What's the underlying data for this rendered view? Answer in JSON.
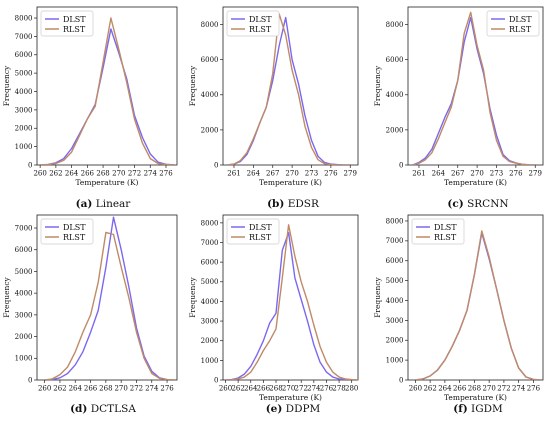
{
  "figure": {
    "colors": {
      "DLST": "#7b68ee",
      "RLST": "#bf8a66",
      "axis": "#222222"
    }
  },
  "chart_data": [
    {
      "type": "line",
      "caption_letter": "(a)",
      "caption_text": "Linear",
      "xlabel": "Temperature (K)",
      "ylabel": "Frequency",
      "xlim": [
        259.6,
        277.4
      ],
      "ylim": [
        0,
        8600
      ],
      "xticks": [
        260,
        262,
        264,
        266,
        268,
        270,
        272,
        274,
        276
      ],
      "yticks": [
        0,
        1000,
        2000,
        3000,
        4000,
        5000,
        6000,
        7000,
        8000
      ],
      "legend_position": "top-left",
      "series": [
        {
          "name": "DLST",
          "x": [
            260,
            261,
            262,
            263,
            264,
            265,
            266,
            267,
            268,
            269,
            270,
            271,
            272,
            273,
            274,
            275,
            276,
            277
          ],
          "y": [
            0,
            30,
            120,
            350,
            900,
            1700,
            2500,
            3300,
            5300,
            7400,
            6100,
            4700,
            2700,
            1500,
            600,
            150,
            40,
            10
          ]
        },
        {
          "name": "RLST",
          "x": [
            260,
            261,
            262,
            263,
            264,
            265,
            266,
            267,
            268,
            269,
            270,
            271,
            272,
            273,
            274,
            275,
            276,
            277
          ],
          "y": [
            0,
            20,
            80,
            250,
            700,
            1600,
            2500,
            3200,
            5600,
            8000,
            6300,
            4500,
            2500,
            1200,
            350,
            80,
            20,
            5
          ]
        }
      ]
    },
    {
      "type": "line",
      "caption_letter": "(b)",
      "caption_text": "EDSR",
      "xlabel": "Temperature (K)",
      "ylabel": "Frequency",
      "xlim": [
        259.3,
        280.2
      ],
      "ylim": [
        0,
        9000
      ],
      "xticks": [
        261,
        264,
        267,
        270,
        273,
        276,
        279
      ],
      "yticks": [
        0,
        2000,
        4000,
        6000,
        8000
      ],
      "legend_position": "top-left",
      "series": [
        {
          "name": "DLST",
          "x": [
            260,
            261,
            262,
            263,
            264,
            265,
            266,
            267,
            268,
            269,
            270,
            271,
            272,
            273,
            274,
            275,
            276,
            277,
            278,
            279
          ],
          "y": [
            0,
            50,
            200,
            600,
            1400,
            2400,
            3300,
            4800,
            6800,
            8400,
            6000,
            4600,
            2800,
            1400,
            500,
            150,
            50,
            20,
            5,
            0
          ]
        },
        {
          "name": "RLST",
          "x": [
            260,
            261,
            262,
            263,
            264,
            265,
            266,
            267,
            268,
            269,
            270,
            271,
            272,
            273,
            274,
            275,
            276,
            277,
            278,
            279
          ],
          "y": [
            0,
            50,
            250,
            700,
            1500,
            2400,
            3300,
            5200,
            8600,
            7400,
            5400,
            4000,
            2200,
            1000,
            300,
            80,
            20,
            5,
            0,
            0
          ]
        }
      ]
    },
    {
      "type": "line",
      "caption_letter": "(c)",
      "caption_text": "SRCNN",
      "xlabel": "Temperature (K)",
      "ylabel": "Frequency",
      "xlim": [
        259.3,
        280.2
      ],
      "ylim": [
        0,
        9000
      ],
      "xticks": [
        261,
        264,
        267,
        270,
        273,
        276,
        279
      ],
      "yticks": [
        0,
        2000,
        4000,
        6000,
        8000
      ],
      "legend_position": "top-right",
      "series": [
        {
          "name": "DLST",
          "x": [
            260,
            261,
            262,
            263,
            264,
            265,
            266,
            267,
            268,
            269,
            270,
            271,
            272,
            273,
            274,
            275,
            276,
            277,
            278,
            279
          ],
          "y": [
            0,
            150,
            400,
            900,
            1800,
            2700,
            3500,
            4800,
            7000,
            8400,
            6600,
            5200,
            3200,
            1700,
            600,
            250,
            120,
            40,
            10,
            0
          ]
        },
        {
          "name": "RLST",
          "x": [
            260,
            261,
            262,
            263,
            264,
            265,
            266,
            267,
            268,
            269,
            270,
            271,
            272,
            273,
            274,
            275,
            276,
            277,
            278,
            279
          ],
          "y": [
            0,
            100,
            300,
            700,
            1500,
            2400,
            3300,
            4800,
            7500,
            8700,
            6800,
            5400,
            3000,
            1400,
            500,
            200,
            100,
            40,
            10,
            0
          ]
        }
      ]
    },
    {
      "type": "line",
      "caption_letter": "(d)",
      "caption_text": "DCTLSA",
      "xlabel": "",
      "ylabel": "Frequency",
      "xlim": [
        259,
        277.3
      ],
      "ylim": [
        0,
        7600
      ],
      "xticks": [
        260,
        262,
        264,
        266,
        268,
        270,
        272,
        274,
        276
      ],
      "yticks": [
        0,
        1000,
        2000,
        3000,
        4000,
        5000,
        6000,
        7000
      ],
      "legend_position": "top-left",
      "series": [
        {
          "name": "DLST",
          "x": [
            260,
            261,
            262,
            263,
            264,
            265,
            266,
            267,
            268,
            269,
            270,
            271,
            272,
            273,
            274,
            275,
            276,
            277
          ],
          "y": [
            0,
            20,
            100,
            300,
            700,
            1300,
            2200,
            3200,
            5200,
            7500,
            6000,
            4300,
            2400,
            1100,
            400,
            100,
            20,
            0
          ]
        },
        {
          "name": "RLST",
          "x": [
            260,
            261,
            262,
            263,
            264,
            265,
            266,
            267,
            268,
            269,
            270,
            271,
            272,
            273,
            274,
            275,
            276,
            277
          ],
          "y": [
            0,
            50,
            250,
            600,
            1300,
            2200,
            3000,
            4500,
            6800,
            6700,
            5200,
            3800,
            2200,
            1000,
            300,
            80,
            20,
            0
          ]
        }
      ]
    },
    {
      "type": "line",
      "caption_letter": "(e)",
      "caption_text": "DDPM",
      "xlabel": "Temperature (K)",
      "ylabel": "Frequency",
      "xlim": [
        259.6,
        281
      ],
      "ylim": [
        0,
        8400
      ],
      "xticks": [
        260,
        262,
        264,
        266,
        268,
        270,
        272,
        274,
        276,
        278,
        280
      ],
      "yticks": [
        0,
        1000,
        2000,
        3000,
        4000,
        5000,
        6000,
        7000,
        8000
      ],
      "legend_position": "top-left",
      "series": [
        {
          "name": "DLST",
          "x": [
            260,
            261,
            262,
            263,
            264,
            265,
            266,
            267,
            268,
            269,
            270,
            271,
            272,
            273,
            274,
            275,
            276,
            277,
            278,
            279,
            280,
            281
          ],
          "y": [
            0,
            20,
            100,
            300,
            700,
            1300,
            2000,
            2900,
            3400,
            6600,
            7500,
            5200,
            4100,
            3000,
            1800,
            900,
            400,
            150,
            50,
            20,
            5,
            0
          ]
        },
        {
          "name": "RLST",
          "x": [
            260,
            261,
            262,
            263,
            264,
            265,
            266,
            267,
            268,
            269,
            270,
            271,
            272,
            273,
            274,
            275,
            276,
            277,
            278,
            279,
            280,
            281
          ],
          "y": [
            0,
            10,
            50,
            150,
            400,
            900,
            1500,
            2000,
            2600,
            5200,
            7900,
            6300,
            5000,
            4000,
            2800,
            1700,
            900,
            400,
            150,
            50,
            20,
            0
          ]
        }
      ]
    },
    {
      "type": "line",
      "caption_letter": "(f)",
      "caption_text": "IGDM",
      "xlabel": "Temperature (K)",
      "ylabel": "Frequency",
      "xlim": [
        259,
        277.3
      ],
      "ylim": [
        0,
        8300
      ],
      "xticks": [
        260,
        262,
        264,
        266,
        268,
        270,
        272,
        274,
        276
      ],
      "yticks": [
        0,
        1000,
        2000,
        3000,
        4000,
        5000,
        6000,
        7000,
        8000
      ],
      "legend_position": "top-left",
      "series": [
        {
          "name": "DLST",
          "x": [
            260,
            261,
            262,
            263,
            264,
            265,
            266,
            267,
            268,
            269,
            270,
            271,
            272,
            273,
            274,
            275,
            276,
            277
          ],
          "y": [
            0,
            50,
            200,
            500,
            1000,
            1700,
            2500,
            3500,
            5300,
            7400,
            6100,
            4600,
            3000,
            1600,
            600,
            150,
            30,
            0
          ]
        },
        {
          "name": "RLST",
          "x": [
            260,
            261,
            262,
            263,
            264,
            265,
            266,
            267,
            268,
            269,
            270,
            271,
            272,
            273,
            274,
            275,
            276,
            277
          ],
          "y": [
            0,
            50,
            200,
            500,
            1000,
            1700,
            2500,
            3500,
            5300,
            7500,
            6200,
            4600,
            3000,
            1600,
            600,
            150,
            30,
            0
          ]
        }
      ]
    }
  ]
}
